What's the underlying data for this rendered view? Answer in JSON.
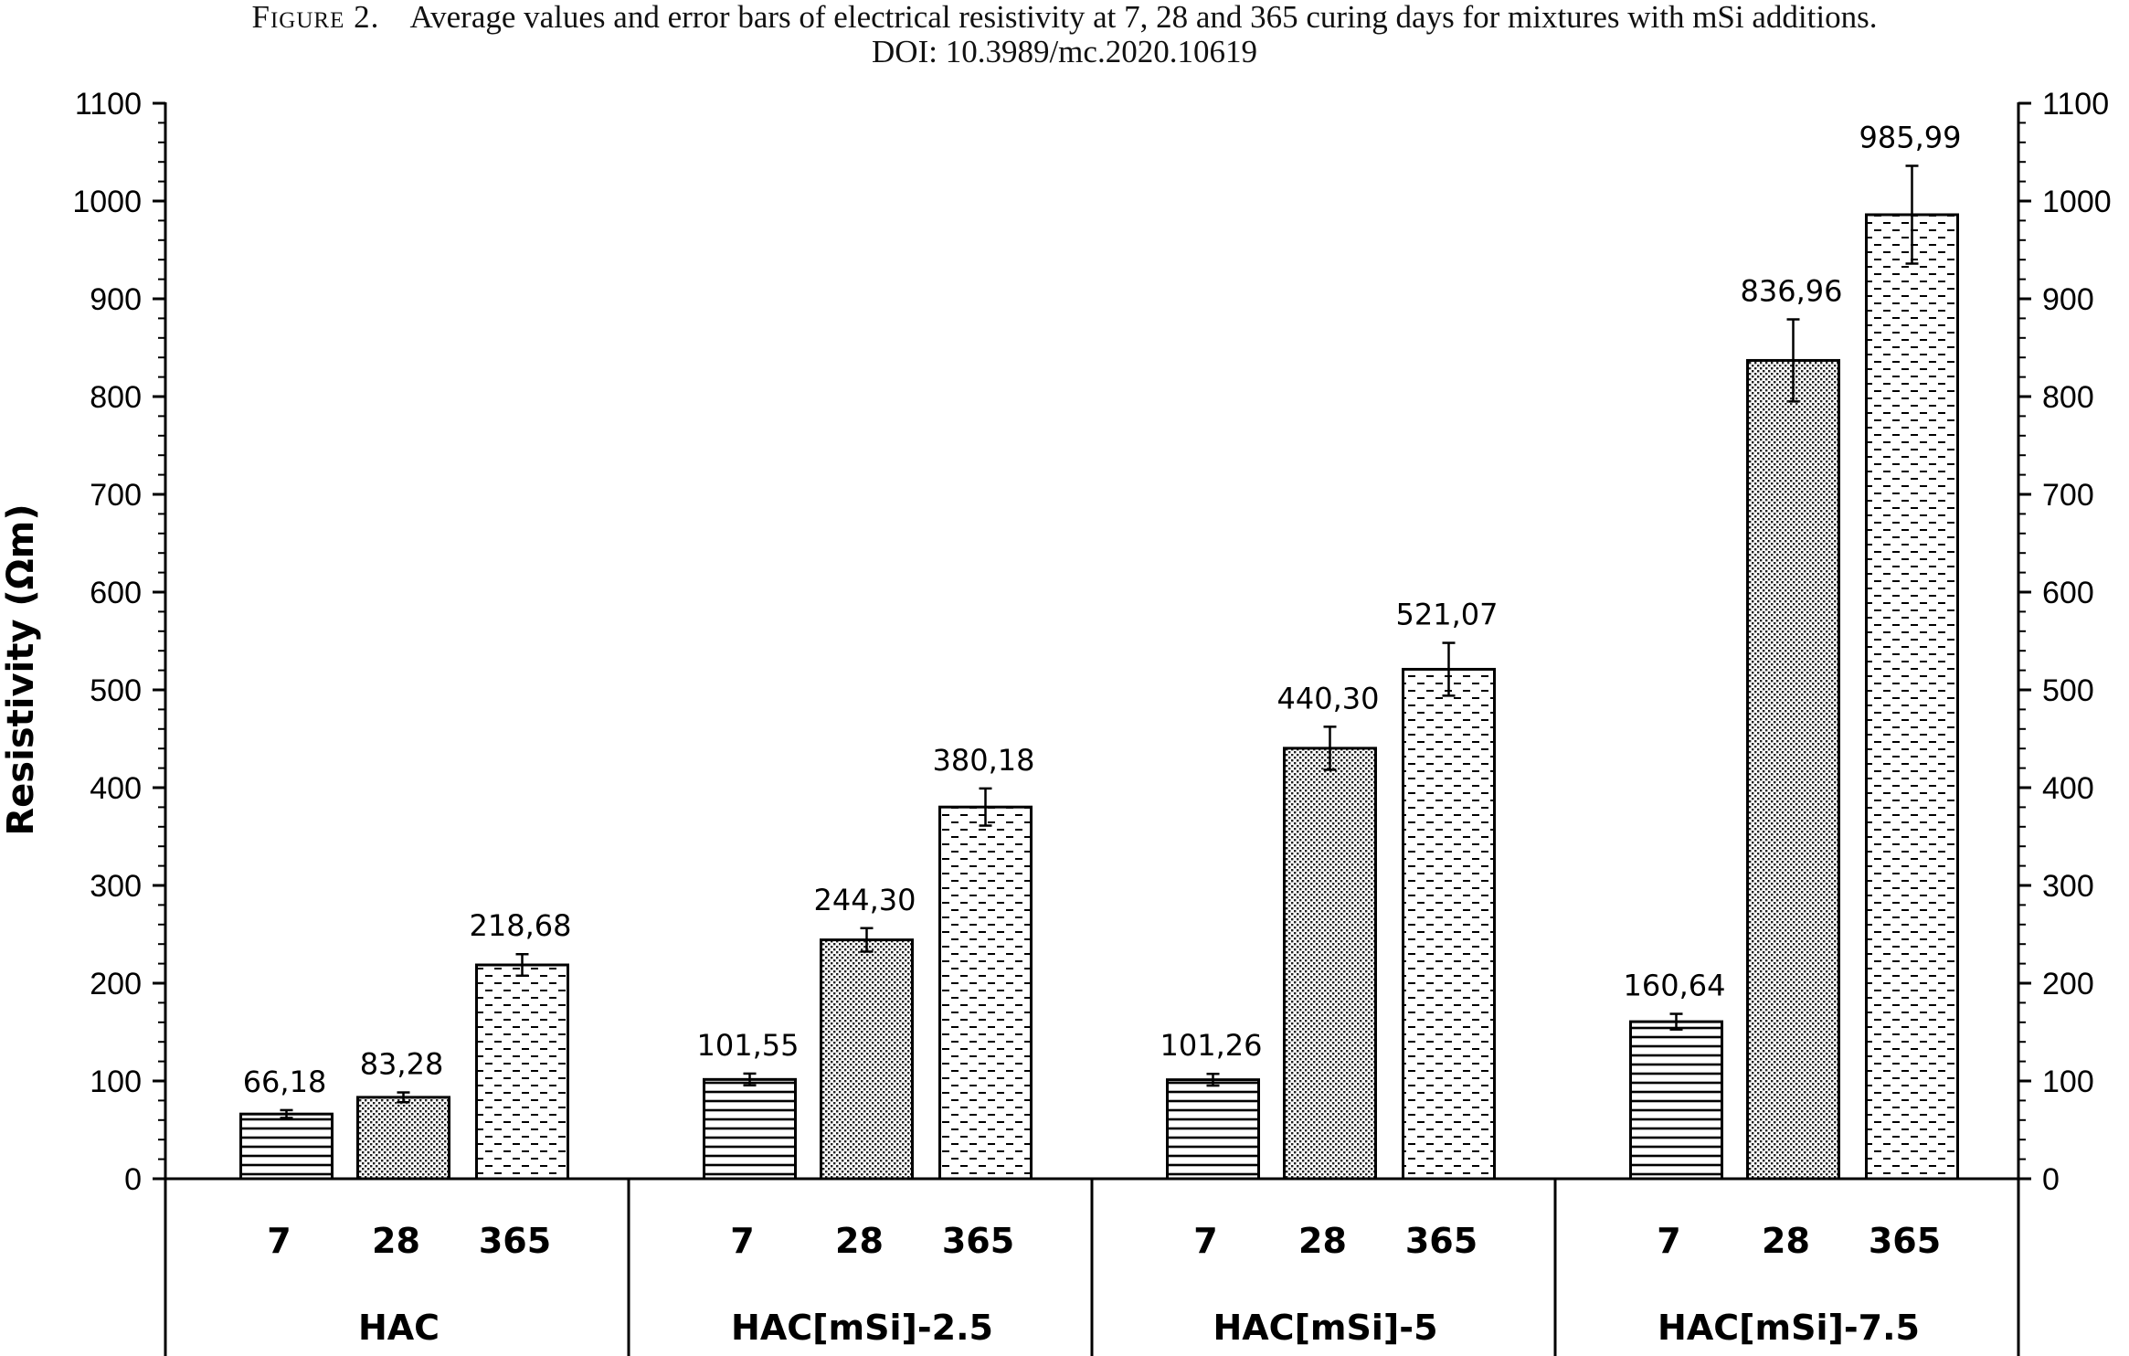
{
  "caption": {
    "figure_label": "Figure 2.",
    "line1": "Average values and error bars of electrical resistivity at 7, 28 and 365 curing days for mixtures with mSi additions.",
    "line2": "DOI: 10.3989/mc.2020.10619"
  },
  "chart_data": {
    "type": "bar",
    "ylabel": "Resistivity (Ωm)",
    "ylim": [
      0,
      1100
    ],
    "yticks": [
      0,
      100,
      200,
      300,
      400,
      500,
      600,
      700,
      800,
      900,
      1000,
      1100
    ],
    "secondary_y_axis": true,
    "grid": false,
    "groups": [
      {
        "name": "HAC",
        "bars": [
          {
            "label": "7",
            "value": 66.18,
            "value_label": "66,18",
            "error": 4,
            "pattern": "horizontal-lines"
          },
          {
            "label": "28",
            "value": 83.28,
            "value_label": "83,28",
            "error": 5,
            "pattern": "dots"
          },
          {
            "label": "365",
            "value": 218.68,
            "value_label": "218,68",
            "error": 11,
            "pattern": "dashes"
          }
        ]
      },
      {
        "name": "HAC[mSi]-2.5",
        "bars": [
          {
            "label": "7",
            "value": 101.55,
            "value_label": "101,55",
            "error": 6,
            "pattern": "horizontal-lines"
          },
          {
            "label": "28",
            "value": 244.3,
            "value_label": "244,30",
            "error": 12,
            "pattern": "dots"
          },
          {
            "label": "365",
            "value": 380.18,
            "value_label": "380,18",
            "error": 19,
            "pattern": "dashes"
          }
        ]
      },
      {
        "name": "HAC[mSi]-5",
        "bars": [
          {
            "label": "7",
            "value": 101.26,
            "value_label": "101,26",
            "error": 6,
            "pattern": "horizontal-lines"
          },
          {
            "label": "28",
            "value": 440.3,
            "value_label": "440,30",
            "error": 22,
            "pattern": "dots"
          },
          {
            "label": "365",
            "value": 521.07,
            "value_label": "521,07",
            "error": 27,
            "pattern": "dashes"
          }
        ]
      },
      {
        "name": "HAC[mSi]-7.5",
        "bars": [
          {
            "label": "7",
            "value": 160.64,
            "value_label": "160,64",
            "error": 8,
            "pattern": "horizontal-lines"
          },
          {
            "label": "28",
            "value": 836.96,
            "value_label": "836,96",
            "error": 42,
            "pattern": "dots"
          },
          {
            "label": "365",
            "value": 985.99,
            "value_label": "985,99",
            "error": 50,
            "pattern": "dashes"
          }
        ]
      }
    ]
  }
}
